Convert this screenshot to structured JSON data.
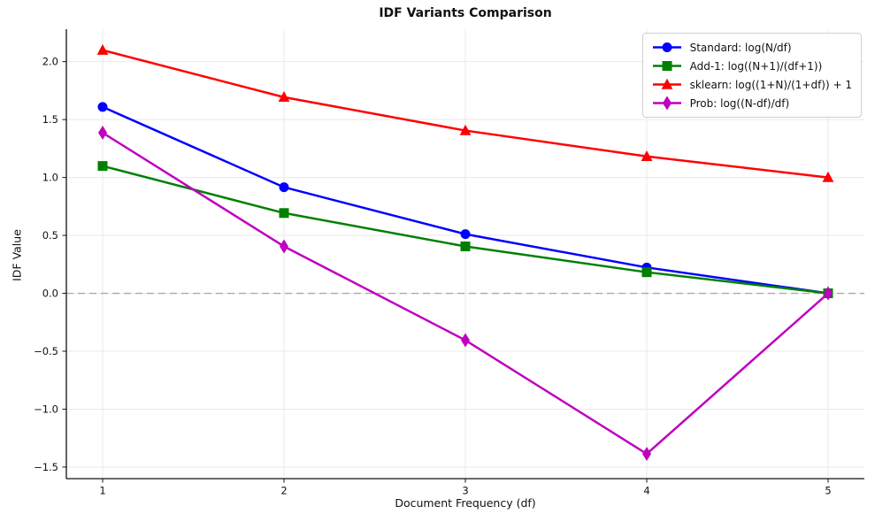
{
  "title": "IDF Variants Comparison",
  "chart_data": {
    "type": "line",
    "title": "IDF Variants Comparison",
    "xlabel": "Document Frequency (df)",
    "ylabel": "IDF Value",
    "x": [
      1,
      2,
      3,
      4,
      5
    ],
    "xticks": [
      1,
      2,
      3,
      4,
      5
    ],
    "yticks": [
      -1.5,
      -1.0,
      -0.5,
      0.0,
      0.5,
      1.0,
      1.5,
      2.0
    ],
    "xlim": [
      0.8,
      5.2
    ],
    "ylim": [
      -1.6,
      2.28
    ],
    "grid": true,
    "legend_position": "upper right",
    "zero_line": {
      "y": 0.0,
      "style": "dashed",
      "color": "#aaaaaa"
    },
    "series": [
      {
        "name": "Standard: log(N/df)",
        "color": "#0000ff",
        "marker": "circle",
        "values": [
          1.609,
          0.916,
          0.511,
          0.223,
          0.0
        ]
      },
      {
        "name": "Add-1: log((N+1)/(df+1))",
        "color": "#008000",
        "marker": "square",
        "values": [
          1.099,
          0.693,
          0.405,
          0.182,
          0.0
        ]
      },
      {
        "name": "sklearn: log((1+N)/(1+df)) + 1",
        "color": "#ff0000",
        "marker": "triangle-up",
        "values": [
          2.099,
          1.693,
          1.405,
          1.182,
          1.0
        ]
      },
      {
        "name": "Prob: log((N-df)/df)",
        "color": "#bf00bf",
        "marker": "diamond-thin",
        "values": [
          1.386,
          0.405,
          -0.405,
          -1.386,
          0.0
        ]
      }
    ]
  }
}
